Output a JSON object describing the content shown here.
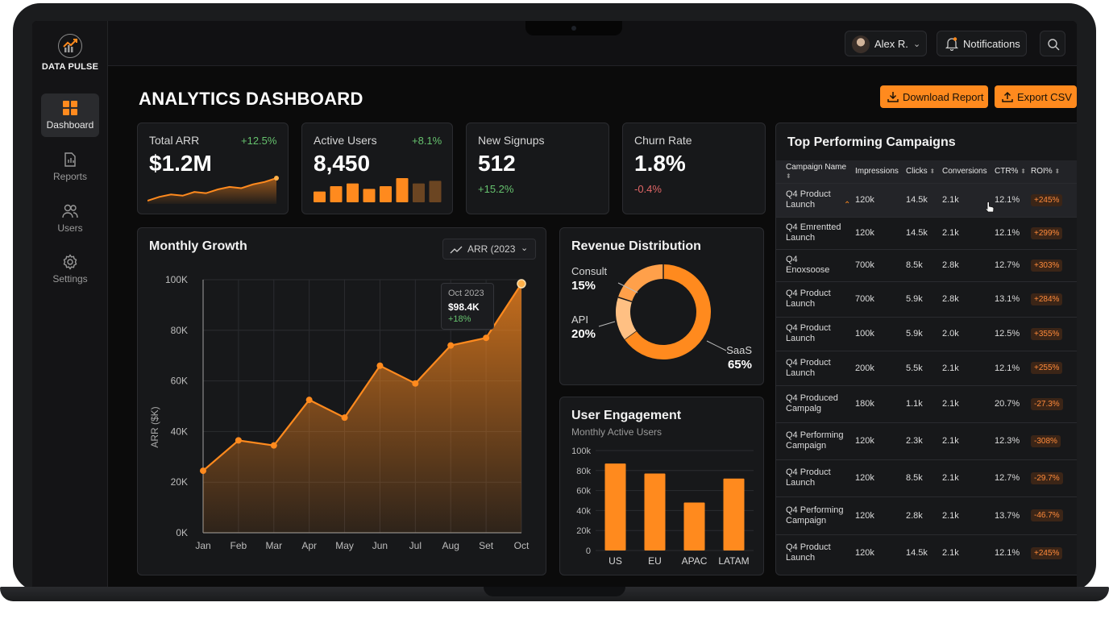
{
  "app": {
    "name": "DATA PULSE",
    "page_title": "ANALYTICS DASHBOARD"
  },
  "sidebar": {
    "items": [
      {
        "label": "Dashboard",
        "icon": "grid-icon",
        "active": true
      },
      {
        "label": "Reports",
        "icon": "report-icon",
        "active": false
      },
      {
        "label": "Users",
        "icon": "users-icon",
        "active": false
      },
      {
        "label": "Settings",
        "icon": "gear-icon",
        "active": false
      }
    ]
  },
  "header": {
    "user_name": "Alex R.",
    "notifications_label": "Notifications"
  },
  "actions": {
    "download_label": "Download Report",
    "export_label": "Export CSV"
  },
  "kpis": [
    {
      "label": "Total ARR",
      "value": "$1.2M",
      "change": "+12.5%"
    },
    {
      "label": "Active Users",
      "value": "8,450",
      "change": "+8.1%"
    },
    {
      "label": "New Signups",
      "value": "512",
      "change": "+15.2%"
    },
    {
      "label": "Churn Rate",
      "value": "1.8%",
      "change": "-0.4%"
    }
  ],
  "colors": {
    "accent": "#ff8a1e",
    "positive": "#66c26e",
    "negative": "#e06666",
    "background": "#0b0b0b"
  },
  "monthly_growth": {
    "title": "Monthly Growth",
    "selector": "ARR (2023",
    "tooltip": {
      "month": "Oct 2023",
      "value": "$98.4K",
      "change": "+18%"
    }
  },
  "revenue_distribution": {
    "title": "Revenue Distribution"
  },
  "user_engagement": {
    "title": "User Engagement",
    "subtitle": "Monthly Active Users"
  },
  "campaigns": {
    "title": "Top Performing Campaigns",
    "columns": [
      "Campaign Name",
      "Impressions",
      "Clicks",
      "Conversions",
      "CTR%",
      "ROI%"
    ],
    "rows": [
      {
        "name": "Q4 Product Launch",
        "impressions": "120k",
        "clicks": "14.5k",
        "conversions": "2.1k",
        "ctr": "12.1%",
        "roi": "+245%"
      },
      {
        "name": "Q4 Emrentted Launch",
        "impressions": "120k",
        "clicks": "14.5k",
        "conversions": "2.1k",
        "ctr": "12.1%",
        "roi": "+299%"
      },
      {
        "name": "Q4 Enoxsoose",
        "impressions": "700k",
        "clicks": "8.5k",
        "conversions": "2.8k",
        "ctr": "12.7%",
        "roi": "+303%"
      },
      {
        "name": "Q4 Product Launch",
        "impressions": "700k",
        "clicks": "5.9k",
        "conversions": "2.8k",
        "ctr": "13.1%",
        "roi": "+284%"
      },
      {
        "name": "Q4 Product Launch",
        "impressions": "100k",
        "clicks": "5.9k",
        "conversions": "2.0k",
        "ctr": "12.5%",
        "roi": "+355%"
      },
      {
        "name": "Q4 Product Launch",
        "impressions": "200k",
        "clicks": "5.5k",
        "conversions": "2.1k",
        "ctr": "12.1%",
        "roi": "+255%"
      },
      {
        "name": "Q4 Produced Campalg",
        "impressions": "180k",
        "clicks": "1.1k",
        "conversions": "2.1k",
        "ctr": "20.7%",
        "roi": "-27.3%"
      },
      {
        "name": "Q4 Performing Campaign",
        "impressions": "120k",
        "clicks": "2.3k",
        "conversions": "2.1k",
        "ctr": "12.3%",
        "roi": "-308%"
      },
      {
        "name": "Q4 Product Launch",
        "impressions": "120k",
        "clicks": "8.5k",
        "conversions": "2.1k",
        "ctr": "12.7%",
        "roi": "-29.7%"
      },
      {
        "name": "Q4 Performing Campaign",
        "impressions": "120k",
        "clicks": "2.8k",
        "conversions": "2.1k",
        "ctr": "13.7%",
        "roi": "-46.7%"
      },
      {
        "name": "Q4 Product Launch",
        "impressions": "120k",
        "clicks": "14.5k",
        "conversions": "2.1k",
        "ctr": "12.1%",
        "roi": "+245%"
      }
    ]
  },
  "chart_data": [
    {
      "type": "area",
      "title": "Monthly Growth",
      "categories": [
        "Jan",
        "Feb",
        "Mar",
        "Apr",
        "May",
        "Jun",
        "Jul",
        "Aug",
        "Set",
        "Oct"
      ],
      "values": [
        24500,
        36500,
        34500,
        52500,
        45500,
        66000,
        59000,
        74000,
        77000,
        98400
      ],
      "ylabel": "ARR ($K)",
      "yticks": [
        "0K",
        "20K",
        "40K",
        "60K",
        "80K",
        "100K"
      ],
      "ylim": [
        0,
        100000
      ],
      "grid": true
    },
    {
      "type": "pie",
      "title": "Revenue Distribution",
      "labels": [
        "Consult",
        "API",
        "SaaS"
      ],
      "values": [
        15,
        20,
        65
      ],
      "value_labels": [
        "15%",
        "20%",
        "65%"
      ]
    },
    {
      "type": "bar",
      "title": "User Engagement",
      "subtitle": "Monthly Active Users",
      "categories": [
        "US",
        "EU",
        "APAC",
        "LATAM"
      ],
      "values": [
        87000,
        77000,
        48000,
        72000
      ],
      "yticks": [
        "0",
        "20k",
        "40k",
        "60k",
        "80k",
        "100k"
      ],
      "ylim": [
        0,
        100000
      ]
    },
    {
      "type": "area",
      "title": "Total ARR sparkline",
      "values": [
        2,
        5,
        7,
        6,
        9,
        8,
        11,
        13,
        12,
        15,
        17,
        20
      ]
    },
    {
      "type": "bar",
      "title": "Active Users sparkline",
      "values": [
        4,
        6,
        7,
        5,
        6,
        9,
        7,
        8
      ]
    }
  ]
}
